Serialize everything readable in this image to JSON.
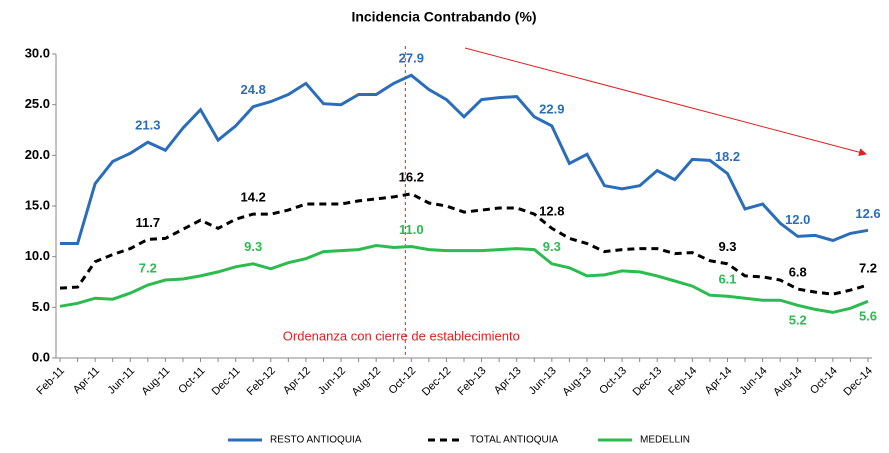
{
  "chart_data": {
    "type": "line",
    "title": "Incidencia Contrabando (%)",
    "annotation": "Ordenanza con cierre de establecimiento",
    "categories": [
      "Feb-11",
      null,
      "Apr-11",
      null,
      "Jun-11",
      null,
      "Aug-11",
      null,
      "Oct-11",
      null,
      "Dec-11",
      null,
      "Feb-12",
      null,
      "Apr-12",
      null,
      "Jun-12",
      null,
      "Aug-12",
      null,
      "Oct-12",
      null,
      "Dec-12",
      null,
      "Feb-13",
      null,
      "Apr-13",
      null,
      "Jun-13",
      null,
      "Aug-13",
      null,
      "Oct-13",
      null,
      "Dec-13",
      null,
      "Feb-14",
      null,
      "Apr-14",
      null,
      "Jun-14",
      null,
      "Aug-14",
      null,
      "Oct-14",
      null,
      "Dec-14"
    ],
    "ylim": [
      0,
      30
    ],
    "yticks": [
      {
        "value": 0,
        "label": "0.0"
      },
      {
        "value": 5,
        "label": "5.0"
      },
      {
        "value": 10,
        "label": "10.0"
      },
      {
        "value": 15,
        "label": "15.0"
      },
      {
        "value": 20,
        "label": "20.0"
      },
      {
        "value": 25,
        "label": "25.0"
      },
      {
        "value": 30,
        "label": "30.0"
      }
    ],
    "grid": false,
    "legend": "bottom",
    "series": [
      {
        "name": "RESTO ANTIOQUIA",
        "color": "#2a6ebb",
        "style": "solid",
        "values": [
          11.3,
          11.3,
          17.2,
          19.4,
          20.2,
          21.3,
          20.5,
          22.7,
          24.5,
          21.5,
          22.9,
          24.8,
          25.3,
          26.0,
          27.1,
          25.1,
          25.0,
          26.0,
          26.0,
          27.1,
          27.9,
          26.5,
          25.5,
          23.8,
          25.5,
          25.7,
          25.8,
          23.8,
          22.9,
          19.2,
          20.1,
          17.0,
          16.7,
          17.0,
          18.5,
          17.6,
          19.6,
          19.5,
          18.2,
          14.7,
          15.2,
          13.3,
          12.0,
          12.1,
          11.6,
          12.3,
          12.6
        ],
        "value_labels": [
          null,
          null,
          null,
          null,
          null,
          "21.3",
          null,
          null,
          null,
          null,
          null,
          "24.8",
          null,
          null,
          null,
          null,
          null,
          null,
          null,
          null,
          "27.9",
          null,
          null,
          null,
          null,
          null,
          null,
          null,
          "22.9",
          null,
          null,
          null,
          null,
          null,
          null,
          null,
          null,
          null,
          "18.2",
          null,
          null,
          null,
          "12.0",
          null,
          null,
          null,
          "12.6"
        ]
      },
      {
        "name": "TOTAL ANTIOQUIA",
        "color": "#000000",
        "style": "dashed",
        "values": [
          6.9,
          7.0,
          9.5,
          10.2,
          10.8,
          11.7,
          11.8,
          12.7,
          13.6,
          12.8,
          13.7,
          14.2,
          14.2,
          14.6,
          15.2,
          15.2,
          15.2,
          15.5,
          15.7,
          15.9,
          16.2,
          15.3,
          15.0,
          14.4,
          14.6,
          14.8,
          14.8,
          14.2,
          12.8,
          11.8,
          11.3,
          10.5,
          10.7,
          10.8,
          10.8,
          10.3,
          10.4,
          9.6,
          9.3,
          8.1,
          8.0,
          7.7,
          6.8,
          6.5,
          6.3,
          6.7,
          7.2
        ],
        "value_labels": [
          null,
          null,
          null,
          null,
          null,
          "11.7",
          null,
          null,
          null,
          null,
          null,
          "14.2",
          null,
          null,
          null,
          null,
          null,
          null,
          null,
          null,
          "16.2",
          null,
          null,
          null,
          null,
          null,
          null,
          null,
          "12.8",
          null,
          null,
          null,
          null,
          null,
          null,
          null,
          null,
          null,
          "9.3",
          null,
          null,
          null,
          "6.8",
          null,
          null,
          null,
          "7.2"
        ]
      },
      {
        "name": "MEDELLIN",
        "color": "#2dbb4f",
        "style": "solid",
        "values": [
          5.1,
          5.4,
          5.9,
          5.8,
          6.4,
          7.2,
          7.7,
          7.8,
          8.1,
          8.5,
          9.0,
          9.3,
          8.8,
          9.4,
          9.8,
          10.5,
          10.6,
          10.7,
          11.1,
          10.9,
          11.0,
          10.7,
          10.6,
          10.6,
          10.6,
          10.7,
          10.8,
          10.7,
          9.3,
          8.9,
          8.1,
          8.2,
          8.6,
          8.5,
          8.1,
          7.6,
          7.1,
          6.2,
          6.1,
          5.9,
          5.7,
          5.7,
          5.2,
          4.8,
          4.5,
          4.9,
          5.6
        ],
        "value_labels": [
          null,
          null,
          null,
          null,
          null,
          "7.2",
          null,
          null,
          null,
          null,
          null,
          "9.3",
          null,
          null,
          null,
          null,
          null,
          null,
          null,
          null,
          "11.0",
          null,
          null,
          null,
          null,
          null,
          null,
          null,
          "9.3",
          null,
          null,
          null,
          null,
          null,
          null,
          null,
          null,
          null,
          "6.1",
          null,
          null,
          null,
          "5.2",
          null,
          null,
          null,
          "5.6"
        ]
      }
    ]
  }
}
